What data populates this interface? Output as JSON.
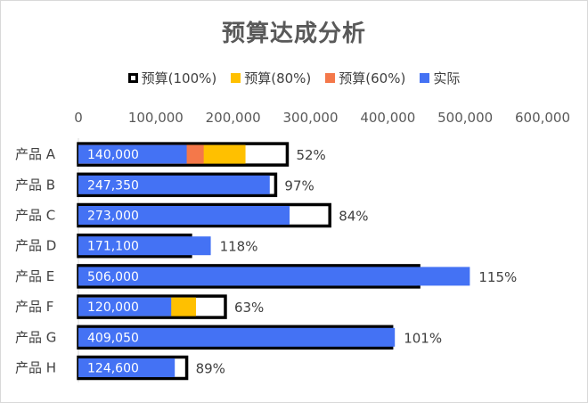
{
  "chart_data": {
    "type": "bar",
    "title": "预算达成分析",
    "categories": [
      "产品 A",
      "产品 B",
      "产品 C",
      "产品 D",
      "产品 E",
      "产品 F",
      "产品 G",
      "产品 H"
    ],
    "xlim": [
      0,
      600000
    ],
    "x_ticks": [
      "0",
      "100,000",
      "200,000",
      "300,000",
      "400,000",
      "500,000",
      "600,000"
    ],
    "x_tick_values": [
      0,
      100000,
      200000,
      300000,
      400000,
      500000,
      600000
    ],
    "legend_position": "top",
    "series": [
      {
        "name": "预算(100%)",
        "color": "#000000",
        "values": [
          270000,
          255000,
          325000,
          145000,
          440000,
          190000,
          405000,
          140000
        ]
      },
      {
        "name": "预算(80%)",
        "color": "#FFC000",
        "values": [
          216000,
          204000,
          260000,
          116000,
          352000,
          152000,
          324000,
          112000
        ]
      },
      {
        "name": "预算(60%)",
        "color": "#F4784A",
        "values": [
          162000,
          153000,
          195000,
          87000,
          264000,
          114000,
          243000,
          84000
        ]
      },
      {
        "name": "实际",
        "color": "#4472F4",
        "values": [
          140000,
          247350,
          273000,
          171100,
          506000,
          120000,
          409050,
          124600
        ]
      }
    ],
    "data_labels": [
      "140,000",
      "247,350",
      "273,000",
      "171,100",
      "506,000",
      "120,000",
      "409,050",
      "124,600"
    ],
    "achievement_labels": [
      "52%",
      "97%",
      "84%",
      "118%",
      "115%",
      "63%",
      "101%",
      "89%"
    ]
  }
}
